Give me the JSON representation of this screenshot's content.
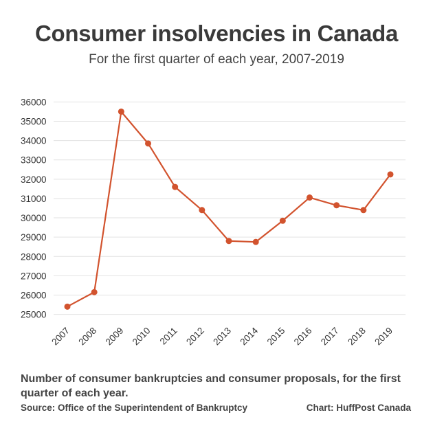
{
  "title": "Consumer insolvencies in Canada",
  "subtitle": "For the first quarter of each year, 2007-2019",
  "note": "Number of consumer bankruptcies and consumer proposals, for the first quarter of each year.",
  "source": "Source: Office of the Superintendent of Bankruptcy",
  "credit": "Chart: HuffPost Canada",
  "colors": {
    "line": "#d2532e",
    "grid": "#e2e2e2",
    "text": "#333333"
  },
  "chart_data": {
    "type": "line",
    "title": "Consumer insolvencies in Canada",
    "subtitle": "For the first quarter of each year, 2007-2019",
    "x": [
      "2007",
      "2008",
      "2009",
      "2010",
      "2011",
      "2012",
      "2013",
      "2014",
      "2015",
      "2016",
      "2017",
      "2018",
      "2019"
    ],
    "series": [
      {
        "values": [
          25400,
          26150,
          35500,
          33850,
          31600,
          30400,
          28800,
          28750,
          29850,
          31050,
          30650,
          30400,
          32250
        ]
      }
    ],
    "yticks": [
      25000,
      26000,
      27000,
      28000,
      29000,
      30000,
      31000,
      32000,
      33000,
      34000,
      35000,
      36000
    ],
    "ylim": [
      24700,
      36300
    ],
    "grid": true,
    "legend": "none"
  }
}
